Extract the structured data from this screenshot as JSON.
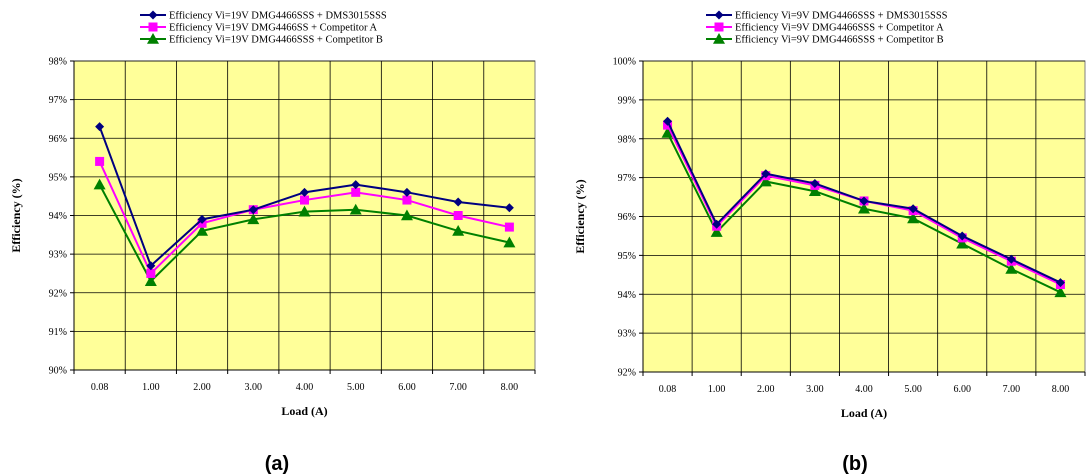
{
  "chart_data": [
    {
      "type": "line",
      "panel_label": "(a)",
      "xlabel": "Load (A)",
      "ylabel": "Efficiency (%)",
      "categories": [
        "0.08",
        "1.00",
        "2.00",
        "3.00",
        "4.00",
        "5.00",
        "6.00",
        "7.00",
        "8.00"
      ],
      "y_ticks": [
        "90%",
        "91%",
        "92%",
        "93%",
        "94%",
        "95%",
        "96%",
        "97%",
        "98%"
      ],
      "ylim": [
        90,
        98
      ],
      "grid": true,
      "plot_background": "#ffff99",
      "legend_position": "top",
      "series": [
        {
          "name": "Efficiency Vi=19V DMG4466SSS + DMS3015SSS",
          "color": "#000080",
          "marker": "diamond",
          "values": [
            96.3,
            92.7,
            93.9,
            94.15,
            94.6,
            94.8,
            94.6,
            94.35,
            94.2
          ]
        },
        {
          "name": "Efficiency Vi=19V DMG4466SS + Competitor A",
          "color": "#ff00ff",
          "marker": "square",
          "values": [
            95.4,
            92.5,
            93.8,
            94.15,
            94.4,
            94.6,
            94.4,
            94.0,
            93.7
          ]
        },
        {
          "name": "Efficiency Vi=19V DMG4466SSS + Competitor B",
          "color": "#008000",
          "marker": "triangle",
          "values": [
            94.8,
            92.3,
            93.6,
            93.9,
            94.1,
            94.15,
            94.0,
            93.6,
            93.3
          ]
        }
      ]
    },
    {
      "type": "line",
      "panel_label": "(b)",
      "xlabel": "Load (A)",
      "ylabel": "Efficiency (%)",
      "categories": [
        "0.08",
        "1.00",
        "2.00",
        "3.00",
        "4.00",
        "5.00",
        "6.00",
        "7.00",
        "8.00"
      ],
      "y_ticks": [
        "92%",
        "93%",
        "94%",
        "95%",
        "96%",
        "97%",
        "98%",
        "99%",
        "100%"
      ],
      "ylim": [
        92,
        100
      ],
      "grid": true,
      "plot_background": "#ffff99",
      "legend_position": "top",
      "series": [
        {
          "name": "Efficiency Vi=9V DMG4466SSS + DMS3015SSS",
          "color": "#000080",
          "marker": "diamond",
          "values": [
            98.45,
            95.8,
            97.1,
            96.85,
            96.4,
            96.2,
            95.5,
            94.9,
            94.3
          ]
        },
        {
          "name": "Efficiency Vi=9V DMG4466SSS + Competitor A",
          "color": "#ff00ff",
          "marker": "square",
          "values": [
            98.35,
            95.75,
            97.05,
            96.8,
            96.4,
            96.15,
            95.45,
            94.85,
            94.25
          ]
        },
        {
          "name": "Efficiency Vi=9V DMG4466SSS + Competitor B",
          "color": "#008000",
          "marker": "triangle",
          "values": [
            98.15,
            95.6,
            96.9,
            96.65,
            96.2,
            95.95,
            95.3,
            94.65,
            94.05
          ]
        }
      ]
    }
  ]
}
